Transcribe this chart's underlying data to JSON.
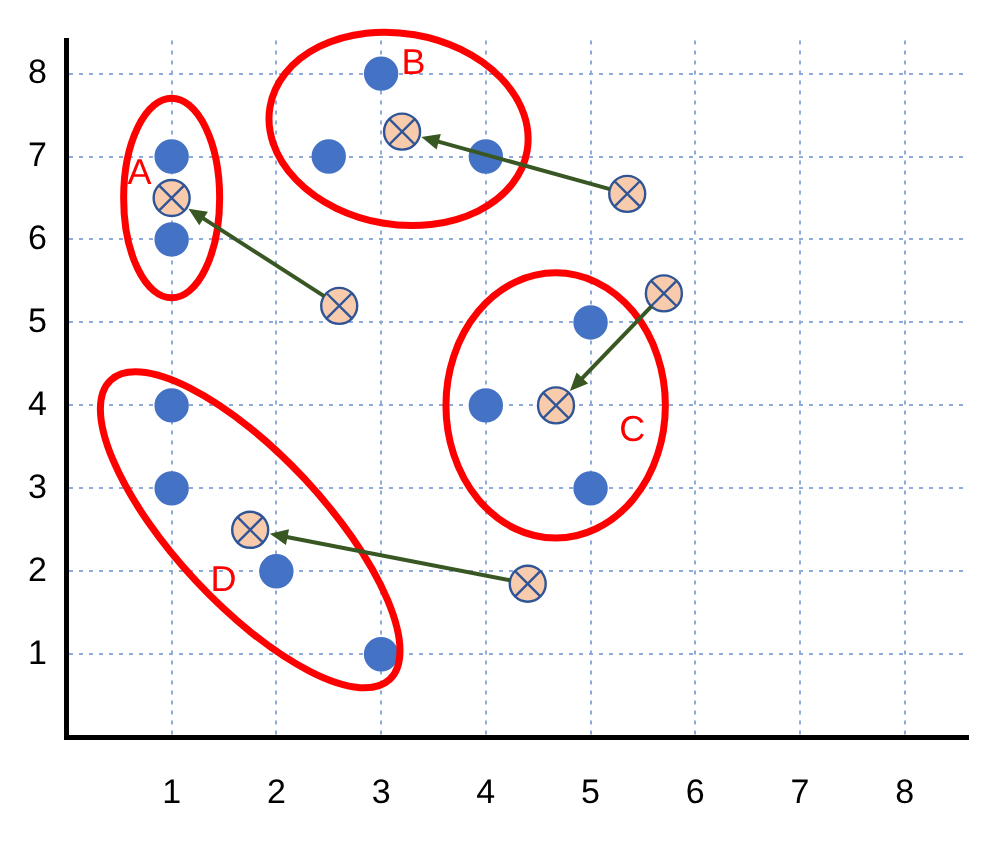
{
  "chart_data": {
    "type": "scatter",
    "xlim": [
      0,
      8.6
    ],
    "ylim": [
      0,
      8.4
    ],
    "xticks": [
      1,
      2,
      3,
      4,
      5,
      6,
      7,
      8
    ],
    "yticks": [
      1,
      2,
      3,
      4,
      5,
      6,
      7,
      8
    ],
    "grid": true,
    "series": [
      {
        "name": "A",
        "color": "#4472c4",
        "marker": "circle",
        "x": [
          1,
          1
        ],
        "values": [
          7,
          6
        ]
      },
      {
        "name": "B",
        "color": "#4472c4",
        "marker": "circle",
        "x": [
          3,
          2.5,
          4
        ],
        "values": [
          8,
          7,
          7
        ]
      },
      {
        "name": "C",
        "color": "#4472c4",
        "marker": "circle",
        "x": [
          5,
          4,
          5
        ],
        "values": [
          5,
          4,
          3
        ]
      },
      {
        "name": "D",
        "color": "#4472c4",
        "marker": "circle",
        "x": [
          1,
          1,
          2,
          3
        ],
        "values": [
          4,
          3,
          2,
          1
        ]
      },
      {
        "color": "#f8cbad",
        "marker": "circle",
        "x": [
          1,
          3.2,
          4.67,
          1.75
        ],
        "values": [
          6.5,
          7.3,
          4,
          2.5
        ]
      },
      {
        "color": "#f8cbad",
        "marker": "circle",
        "x": [
          2.6,
          5.35,
          5.7,
          4.4
        ],
        "values": [
          5.2,
          6.55,
          5.35,
          1.85
        ]
      }
    ]
  }
}
